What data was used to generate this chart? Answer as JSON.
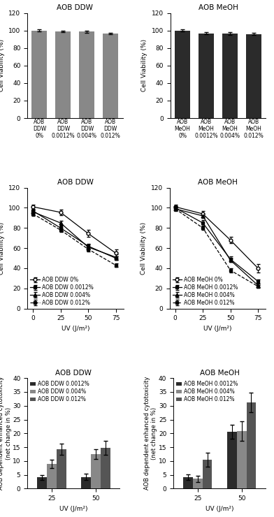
{
  "panelA_ddw": {
    "title": "AOB DDW",
    "categories": [
      "AOB\nDDW\n0%",
      "AOB\nDDW\n0.0012%",
      "AOB\nDDW\n0.004%",
      "AOB\nDDW\n0.012%"
    ],
    "values": [
      100.0,
      98.8,
      98.5,
      96.5
    ],
    "errors": [
      1.5,
      1.0,
      1.2,
      1.0
    ],
    "bar_color": "#888888",
    "ylim": [
      0,
      120
    ],
    "yticks": [
      0,
      20,
      40,
      60,
      80,
      100,
      120
    ],
    "ylabel": "Cell Viability (%)"
  },
  "panelA_meoh": {
    "title": "AOB MeOH",
    "categories": [
      "AOB\nMeOH\n0%",
      "AOB\nMeOH\n0.0012%",
      "AOB\nMeOH\n0.004%",
      "AOB\nMeOH\n0.012%"
    ],
    "values": [
      100.0,
      96.5,
      96.5,
      96.0
    ],
    "errors": [
      1.0,
      1.2,
      1.5,
      1.2
    ],
    "bar_color": "#2b2b2b",
    "ylim": [
      0,
      120
    ],
    "yticks": [
      0,
      20,
      40,
      60,
      80,
      100,
      120
    ],
    "ylabel": "Cell Viability (%)"
  },
  "panelB_ddw": {
    "title": "AOB DDW",
    "xlabel": "UV (J/m²)",
    "ylabel": "Cell Viability (%)",
    "xvals": [
      0,
      25,
      50,
      75
    ],
    "ylim": [
      0,
      120
    ],
    "yticks": [
      0,
      20,
      40,
      60,
      80,
      100,
      120
    ],
    "series": [
      {
        "label": "AOB DDW 0%",
        "values": [
          101.0,
          95.5,
          74.5,
          55.0
        ],
        "errors": [
          2.0,
          3.0,
          3.5,
          3.5
        ],
        "marker": "o",
        "fillstyle": "none",
        "linestyle": "-",
        "color": "#000000"
      },
      {
        "label": "AOB DDW 0.0012%",
        "values": [
          97.0,
          80.0,
          62.0,
          50.0
        ],
        "errors": [
          1.5,
          2.5,
          2.5,
          2.0
        ],
        "marker": "s",
        "fillstyle": "full",
        "linestyle": "-",
        "color": "#000000"
      },
      {
        "label": "AOB DDW 0.004%",
        "values": [
          96.0,
          85.0,
          61.0,
          51.0
        ],
        "errors": [
          1.5,
          2.0,
          2.5,
          3.0
        ],
        "marker": "^",
        "fillstyle": "full",
        "linestyle": "-",
        "color": "#000000"
      },
      {
        "label": "AOB DDW 0.012%",
        "values": [
          94.0,
          78.0,
          59.0,
          43.0
        ],
        "errors": [
          2.0,
          2.0,
          2.5,
          1.5
        ],
        "marker": "s",
        "fillstyle": "full",
        "linestyle": "--",
        "color": "#000000"
      }
    ]
  },
  "panelB_meoh": {
    "title": "AOB MeOH",
    "xlabel": "UV (J/m²)",
    "ylabel": "Cell Viability (%)",
    "xvals": [
      0,
      25,
      50,
      75
    ],
    "ylim": [
      0,
      120
    ],
    "yticks": [
      0,
      20,
      40,
      60,
      80,
      100,
      120
    ],
    "series": [
      {
        "label": "AOB MeOH 0%",
        "values": [
          101.0,
          94.0,
          68.0,
          40.0
        ],
        "errors": [
          2.0,
          3.0,
          3.0,
          4.0
        ],
        "marker": "o",
        "fillstyle": "none",
        "linestyle": "-",
        "color": "#000000"
      },
      {
        "label": "AOB MeOH 0.0012%",
        "values": [
          100.0,
          85.0,
          49.0,
          27.0
        ],
        "errors": [
          1.5,
          2.5,
          2.5,
          2.0
        ],
        "marker": "s",
        "fillstyle": "full",
        "linestyle": "-",
        "color": "#000000"
      },
      {
        "label": "AOB MeOH 0.004%",
        "values": [
          99.0,
          92.0,
          48.0,
          23.0
        ],
        "errors": [
          1.5,
          2.0,
          2.0,
          2.0
        ],
        "marker": "^",
        "fillstyle": "full",
        "linestyle": "-",
        "color": "#000000"
      },
      {
        "label": "AOB MeOH 0.012%",
        "values": [
          99.0,
          80.0,
          38.0,
          22.0
        ],
        "errors": [
          2.0,
          2.0,
          2.0,
          1.5
        ],
        "marker": "s",
        "fillstyle": "full",
        "linestyle": "--",
        "color": "#000000"
      }
    ]
  },
  "panelC_ddw": {
    "title": "AOB DDW",
    "xlabel": "UV (J/m²)",
    "ylabel": "AOB dependent enhanced cytotoxicity\n(net change in %)",
    "xvals": [
      25,
      50
    ],
    "ylim": [
      0,
      40
    ],
    "yticks": [
      0,
      5,
      10,
      15,
      20,
      25,
      30,
      35,
      40
    ],
    "series": [
      {
        "label": "AOB DDW 0.0012%",
        "values": [
          4.0,
          4.2
        ],
        "errors": [
          1.0,
          1.2
        ],
        "color": "#2b2b2b"
      },
      {
        "label": "AOB DDW 0.004%",
        "values": [
          9.0,
          12.5
        ],
        "errors": [
          1.5,
          1.8
        ],
        "color": "#888888"
      },
      {
        "label": "AOB DDW 0.012%",
        "values": [
          14.2,
          14.8
        ],
        "errors": [
          2.0,
          2.5
        ],
        "color": "#555555"
      }
    ],
    "bar_width": 0.22
  },
  "panelC_meoh": {
    "title": "AOB MeOH",
    "xlabel": "UV (J/m²)",
    "ylabel": "AOB dependent enhanced cytotoxicity\n(net change in %)",
    "xvals": [
      25,
      50
    ],
    "ylim": [
      0,
      40
    ],
    "yticks": [
      0,
      5,
      10,
      15,
      20,
      25,
      30,
      35,
      40
    ],
    "series": [
      {
        "label": "AOB MeOH 0.0012%",
        "values": [
          4.2,
          20.5
        ],
        "errors": [
          1.0,
          2.5
        ],
        "color": "#2b2b2b"
      },
      {
        "label": "AOB MeOH 0.004%",
        "values": [
          3.5,
          20.8
        ],
        "errors": [
          1.2,
          3.5
        ],
        "color": "#888888"
      },
      {
        "label": "AOB MeOH 0.012%",
        "values": [
          10.5,
          31.2
        ],
        "errors": [
          2.5,
          3.5
        ],
        "color": "#555555"
      }
    ],
    "bar_width": 0.22
  },
  "label_fontsize": 6.5,
  "tick_fontsize": 6.5,
  "title_fontsize": 7.5,
  "legend_fontsize": 5.5
}
